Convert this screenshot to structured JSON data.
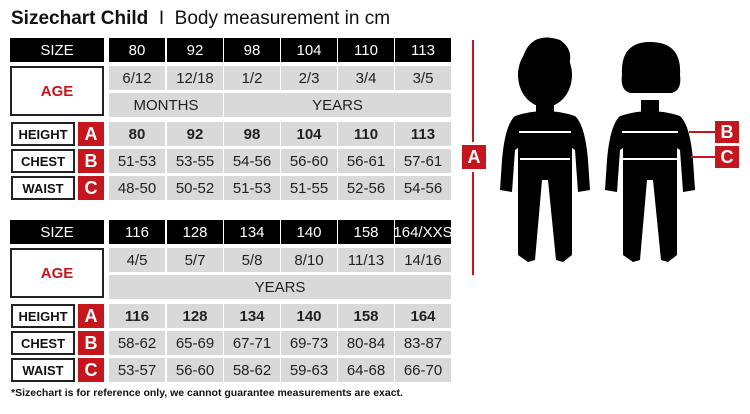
{
  "title": {
    "bold": "Sizechart Child",
    "separator": "I",
    "subtitle": "Body measurement in cm"
  },
  "labels": {
    "size": "SIZE",
    "age": "AGE",
    "height": "HEIGHT",
    "chest": "CHEST",
    "waist": "WAIST",
    "a": "A",
    "b": "B",
    "c": "C"
  },
  "tables": [
    {
      "sizes": [
        "80",
        "92",
        "98",
        "104",
        "110",
        "113"
      ],
      "ages": [
        "6/12",
        "12/18",
        "1/2",
        "2/3",
        "3/4",
        "3/5"
      ],
      "age_units": [
        {
          "label": "MONTHS",
          "span": 2
        },
        {
          "label": "YEARS",
          "span": 4
        }
      ],
      "height": [
        "80",
        "92",
        "98",
        "104",
        "110",
        "113"
      ],
      "chest": [
        "51-53",
        "53-55",
        "54-56",
        "56-60",
        "56-61",
        "57-61"
      ],
      "waist": [
        "48-50",
        "50-52",
        "51-53",
        "51-55",
        "52-56",
        "54-56"
      ]
    },
    {
      "sizes": [
        "116",
        "128",
        "134",
        "140",
        "158",
        "164/XXS"
      ],
      "ages": [
        "4/5",
        "5/7",
        "5/8",
        "8/10",
        "11/13",
        "14/16"
      ],
      "age_units": [
        {
          "label": "YEARS",
          "span": 6
        }
      ],
      "height": [
        "116",
        "128",
        "134",
        "140",
        "158",
        "164"
      ],
      "chest": [
        "58-62",
        "65-69",
        "67-71",
        "69-73",
        "80-84",
        "83-87"
      ],
      "waist": [
        "53-57",
        "56-60",
        "58-62",
        "59-63",
        "64-68",
        "66-70"
      ]
    }
  ],
  "figure": {
    "marker_a": "A",
    "marker_b": "B",
    "marker_c": "C"
  },
  "footnote": "*Sizechart is for reference only, we cannot guarantee measurements are exact.",
  "colors": {
    "accent": "#c4161c",
    "header": "#000000",
    "cell": "#d9d9d9"
  }
}
